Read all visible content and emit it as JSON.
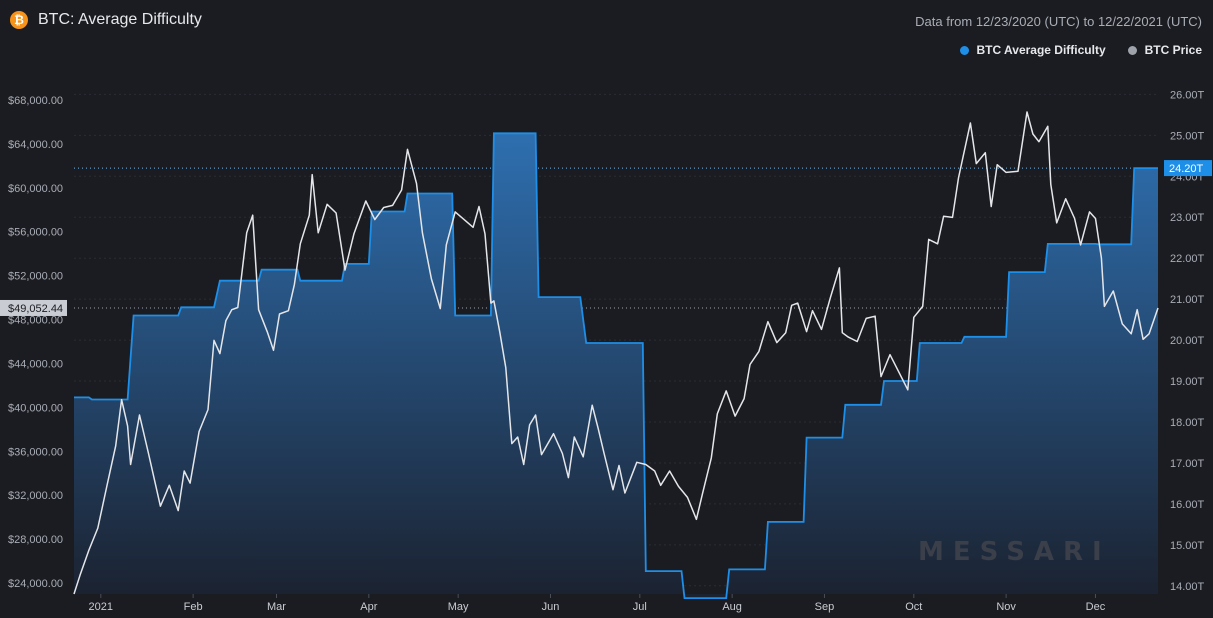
{
  "header": {
    "coin_icon": "bitcoin-icon",
    "coin_glyph": "₿",
    "title": "BTC: Average Difficulty",
    "date_range": "Data from 12/23/2020 (UTC) to 12/22/2021 (UTC)"
  },
  "legend": [
    {
      "label": "BTC Average Difficulty",
      "color": "#1e8fe8"
    },
    {
      "label": "BTC Price",
      "color": "#9ea2ab"
    }
  ],
  "watermark": "MESSARI",
  "colors": {
    "difficulty_line": "#1e8fe8",
    "difficulty_fill_top": "#2e6fb0",
    "difficulty_fill_bottom": "#1b2230",
    "price_line": "#e4e6ea",
    "grid": "#2a2d36",
    "badge_left": "#c9ccd3",
    "badge_right": "#1e8fe8"
  },
  "chart_data": {
    "type": "area",
    "x_range": [
      "2020-12-23",
      "2021-12-22"
    ],
    "x_ticks": [
      "2021",
      "Feb",
      "Mar",
      "Apr",
      "May",
      "Jun",
      "Jul",
      "Aug",
      "Sep",
      "Oct",
      "Nov",
      "Dec"
    ],
    "y_left": {
      "label": "",
      "range": [
        23000,
        70000
      ],
      "ticks": [
        "$24,000.00",
        "$28,000.00",
        "$32,000.00",
        "$36,000.00",
        "$40,000.00",
        "$44,000.00",
        "$48,000.00",
        "$52,000.00",
        "$56,000.00",
        "$60,000.00",
        "$64,000.00",
        "$68,000.00"
      ]
    },
    "y_right": {
      "label": "",
      "range": [
        13.8,
        26.4
      ],
      "ticks": [
        "14.00T",
        "15.00T",
        "16.00T",
        "17.00T",
        "18.00T",
        "19.00T",
        "20.00T",
        "21.00T",
        "22.00T",
        "23.00T",
        "24.00T",
        "25.00T",
        "26.00T"
      ]
    },
    "current_price_label": "$49,052.44",
    "current_difficulty_label": "24.20T",
    "series": [
      {
        "name": "BTC Average Difficulty",
        "axis": "right",
        "points": [
          [
            "2020-12-23",
            18.6
          ],
          [
            "2020-12-28",
            18.6
          ],
          [
            "2020-12-29",
            18.55
          ],
          [
            "2021-01-10",
            18.55
          ],
          [
            "2021-01-12",
            20.6
          ],
          [
            "2021-01-27",
            20.6
          ],
          [
            "2021-01-28",
            20.8
          ],
          [
            "2021-02-08",
            20.8
          ],
          [
            "2021-02-10",
            21.45
          ],
          [
            "2021-02-23",
            21.45
          ],
          [
            "2021-02-24",
            21.72
          ],
          [
            "2021-03-08",
            21.72
          ],
          [
            "2021-03-09",
            21.45
          ],
          [
            "2021-03-23",
            21.45
          ],
          [
            "2021-03-24",
            21.86
          ],
          [
            "2021-04-01",
            21.86
          ],
          [
            "2021-04-02",
            23.14
          ],
          [
            "2021-04-13",
            23.14
          ],
          [
            "2021-04-14",
            23.58
          ],
          [
            "2021-04-29",
            23.58
          ],
          [
            "2021-04-30",
            20.6
          ],
          [
            "2021-05-12",
            20.6
          ],
          [
            "2021-05-13",
            25.05
          ],
          [
            "2021-05-27",
            25.05
          ],
          [
            "2021-05-28",
            21.05
          ],
          [
            "2021-06-11",
            21.05
          ],
          [
            "2021-06-13",
            19.93
          ],
          [
            "2021-07-02",
            19.93
          ],
          [
            "2021-07-03",
            14.36
          ],
          [
            "2021-07-15",
            14.36
          ],
          [
            "2021-07-16",
            13.7
          ],
          [
            "2021-07-30",
            13.7
          ],
          [
            "2021-07-31",
            14.4
          ],
          [
            "2021-08-12",
            14.4
          ],
          [
            "2021-08-13",
            15.56
          ],
          [
            "2021-08-25",
            15.56
          ],
          [
            "2021-08-26",
            17.62
          ],
          [
            "2021-09-07",
            17.62
          ],
          [
            "2021-09-08",
            18.42
          ],
          [
            "2021-09-20",
            18.42
          ],
          [
            "2021-09-21",
            19.0
          ],
          [
            "2021-10-02",
            19.0
          ],
          [
            "2021-10-03",
            19.93
          ],
          [
            "2021-10-17",
            19.93
          ],
          [
            "2021-10-18",
            20.08
          ],
          [
            "2021-11-01",
            20.08
          ],
          [
            "2021-11-02",
            21.66
          ],
          [
            "2021-11-14",
            21.66
          ],
          [
            "2021-11-15",
            22.35
          ],
          [
            "2021-12-01",
            22.35
          ],
          [
            "2021-12-02",
            22.34
          ],
          [
            "2021-12-13",
            22.34
          ],
          [
            "2021-12-14",
            24.2
          ],
          [
            "2021-12-22",
            24.2
          ]
        ]
      },
      {
        "name": "BTC Price",
        "axis": "left",
        "points": [
          [
            "2020-12-23",
            23000
          ],
          [
            "2020-12-25",
            24700
          ],
          [
            "2020-12-28",
            27000
          ],
          [
            "2020-12-31",
            29000
          ],
          [
            "2021-01-03",
            32800
          ],
          [
            "2021-01-06",
            36500
          ],
          [
            "2021-01-08",
            40700
          ],
          [
            "2021-01-10",
            38300
          ],
          [
            "2021-01-11",
            34800
          ],
          [
            "2021-01-14",
            39300
          ],
          [
            "2021-01-17",
            35800
          ],
          [
            "2021-01-21",
            31000
          ],
          [
            "2021-01-24",
            32900
          ],
          [
            "2021-01-27",
            30600
          ],
          [
            "2021-01-29",
            34200
          ],
          [
            "2021-01-31",
            33100
          ],
          [
            "2021-02-03",
            37800
          ],
          [
            "2021-02-06",
            39800
          ],
          [
            "2021-02-08",
            46100
          ],
          [
            "2021-02-10",
            44900
          ],
          [
            "2021-02-12",
            47900
          ],
          [
            "2021-02-14",
            48900
          ],
          [
            "2021-02-16",
            49100
          ],
          [
            "2021-02-19",
            55900
          ],
          [
            "2021-02-21",
            57500
          ],
          [
            "2021-02-23",
            48900
          ],
          [
            "2021-02-26",
            46800
          ],
          [
            "2021-02-28",
            45200
          ],
          [
            "2021-03-02",
            48500
          ],
          [
            "2021-03-05",
            48800
          ],
          [
            "2021-03-07",
            51200
          ],
          [
            "2021-03-09",
            54900
          ],
          [
            "2021-03-12",
            57500
          ],
          [
            "2021-03-13",
            61200
          ],
          [
            "2021-03-15",
            55900
          ],
          [
            "2021-03-18",
            58500
          ],
          [
            "2021-03-21",
            57700
          ],
          [
            "2021-03-24",
            52500
          ],
          [
            "2021-03-27",
            55800
          ],
          [
            "2021-03-31",
            58800
          ],
          [
            "2021-04-03",
            57100
          ],
          [
            "2021-04-06",
            58200
          ],
          [
            "2021-04-09",
            58400
          ],
          [
            "2021-04-12",
            59800
          ],
          [
            "2021-04-14",
            63500
          ],
          [
            "2021-04-17",
            60400
          ],
          [
            "2021-04-19",
            55900
          ],
          [
            "2021-04-22",
            51700
          ],
          [
            "2021-04-25",
            49000
          ],
          [
            "2021-04-27",
            54800
          ],
          [
            "2021-04-30",
            57800
          ],
          [
            "2021-05-03",
            57100
          ],
          [
            "2021-05-06",
            56400
          ],
          [
            "2021-05-08",
            58300
          ],
          [
            "2021-05-10",
            55800
          ],
          [
            "2021-05-12",
            49500
          ],
          [
            "2021-05-13",
            49700
          ],
          [
            "2021-05-15",
            46800
          ],
          [
            "2021-05-17",
            43600
          ],
          [
            "2021-05-19",
            36700
          ],
          [
            "2021-05-21",
            37300
          ],
          [
            "2021-05-23",
            34800
          ],
          [
            "2021-05-25",
            38400
          ],
          [
            "2021-05-27",
            39300
          ],
          [
            "2021-05-29",
            35700
          ],
          [
            "2021-06-02",
            37600
          ],
          [
            "2021-06-05",
            35800
          ],
          [
            "2021-06-07",
            33600
          ],
          [
            "2021-06-09",
            37300
          ],
          [
            "2021-06-12",
            35500
          ],
          [
            "2021-06-15",
            40200
          ],
          [
            "2021-06-17",
            38100
          ],
          [
            "2021-06-19",
            35800
          ],
          [
            "2021-06-22",
            32500
          ],
          [
            "2021-06-24",
            34700
          ],
          [
            "2021-06-26",
            32200
          ],
          [
            "2021-06-30",
            35000
          ],
          [
            "2021-07-03",
            34800
          ],
          [
            "2021-07-06",
            34200
          ],
          [
            "2021-07-08",
            32900
          ],
          [
            "2021-07-11",
            34200
          ],
          [
            "2021-07-14",
            32800
          ],
          [
            "2021-07-17",
            31800
          ],
          [
            "2021-07-20",
            29800
          ],
          [
            "2021-07-22",
            32100
          ],
          [
            "2021-07-25",
            35400
          ],
          [
            "2021-07-27",
            39400
          ],
          [
            "2021-07-30",
            41500
          ],
          [
            "2021-08-02",
            39200
          ],
          [
            "2021-08-05",
            40800
          ],
          [
            "2021-08-07",
            43900
          ],
          [
            "2021-08-10",
            45100
          ],
          [
            "2021-08-13",
            47800
          ],
          [
            "2021-08-16",
            45900
          ],
          [
            "2021-08-19",
            46800
          ],
          [
            "2021-08-21",
            49300
          ],
          [
            "2021-08-23",
            49500
          ],
          [
            "2021-08-26",
            46900
          ],
          [
            "2021-08-28",
            48800
          ],
          [
            "2021-08-31",
            47100
          ],
          [
            "2021-09-03",
            50000
          ],
          [
            "2021-09-06",
            52700
          ],
          [
            "2021-09-07",
            46800
          ],
          [
            "2021-09-09",
            46400
          ],
          [
            "2021-09-12",
            46000
          ],
          [
            "2021-09-15",
            48100
          ],
          [
            "2021-09-18",
            48300
          ],
          [
            "2021-09-20",
            42800
          ],
          [
            "2021-09-23",
            44800
          ],
          [
            "2021-09-26",
            43200
          ],
          [
            "2021-09-29",
            41600
          ],
          [
            "2021-10-01",
            48200
          ],
          [
            "2021-10-04",
            49200
          ],
          [
            "2021-10-06",
            55300
          ],
          [
            "2021-10-09",
            54900
          ],
          [
            "2021-10-11",
            57400
          ],
          [
            "2021-10-14",
            57300
          ],
          [
            "2021-10-16",
            60900
          ],
          [
            "2021-10-20",
            65900
          ],
          [
            "2021-10-22",
            62200
          ],
          [
            "2021-10-25",
            63200
          ],
          [
            "2021-10-27",
            58300
          ],
          [
            "2021-10-29",
            62100
          ],
          [
            "2021-11-01",
            61400
          ],
          [
            "2021-11-05",
            61500
          ],
          [
            "2021-11-08",
            66900
          ],
          [
            "2021-11-10",
            64900
          ],
          [
            "2021-11-12",
            64200
          ],
          [
            "2021-11-15",
            65600
          ],
          [
            "2021-11-16",
            60300
          ],
          [
            "2021-11-18",
            56800
          ],
          [
            "2021-11-21",
            59000
          ],
          [
            "2021-11-24",
            57200
          ],
          [
            "2021-11-26",
            54800
          ],
          [
            "2021-11-29",
            57800
          ],
          [
            "2021-12-01",
            57200
          ],
          [
            "2021-12-03",
            53600
          ],
          [
            "2021-12-04",
            49200
          ],
          [
            "2021-12-07",
            50600
          ],
          [
            "2021-12-10",
            47600
          ],
          [
            "2021-12-13",
            46700
          ],
          [
            "2021-12-15",
            48900
          ],
          [
            "2021-12-17",
            46200
          ],
          [
            "2021-12-19",
            46700
          ],
          [
            "2021-12-22",
            49052.44
          ]
        ]
      }
    ]
  }
}
